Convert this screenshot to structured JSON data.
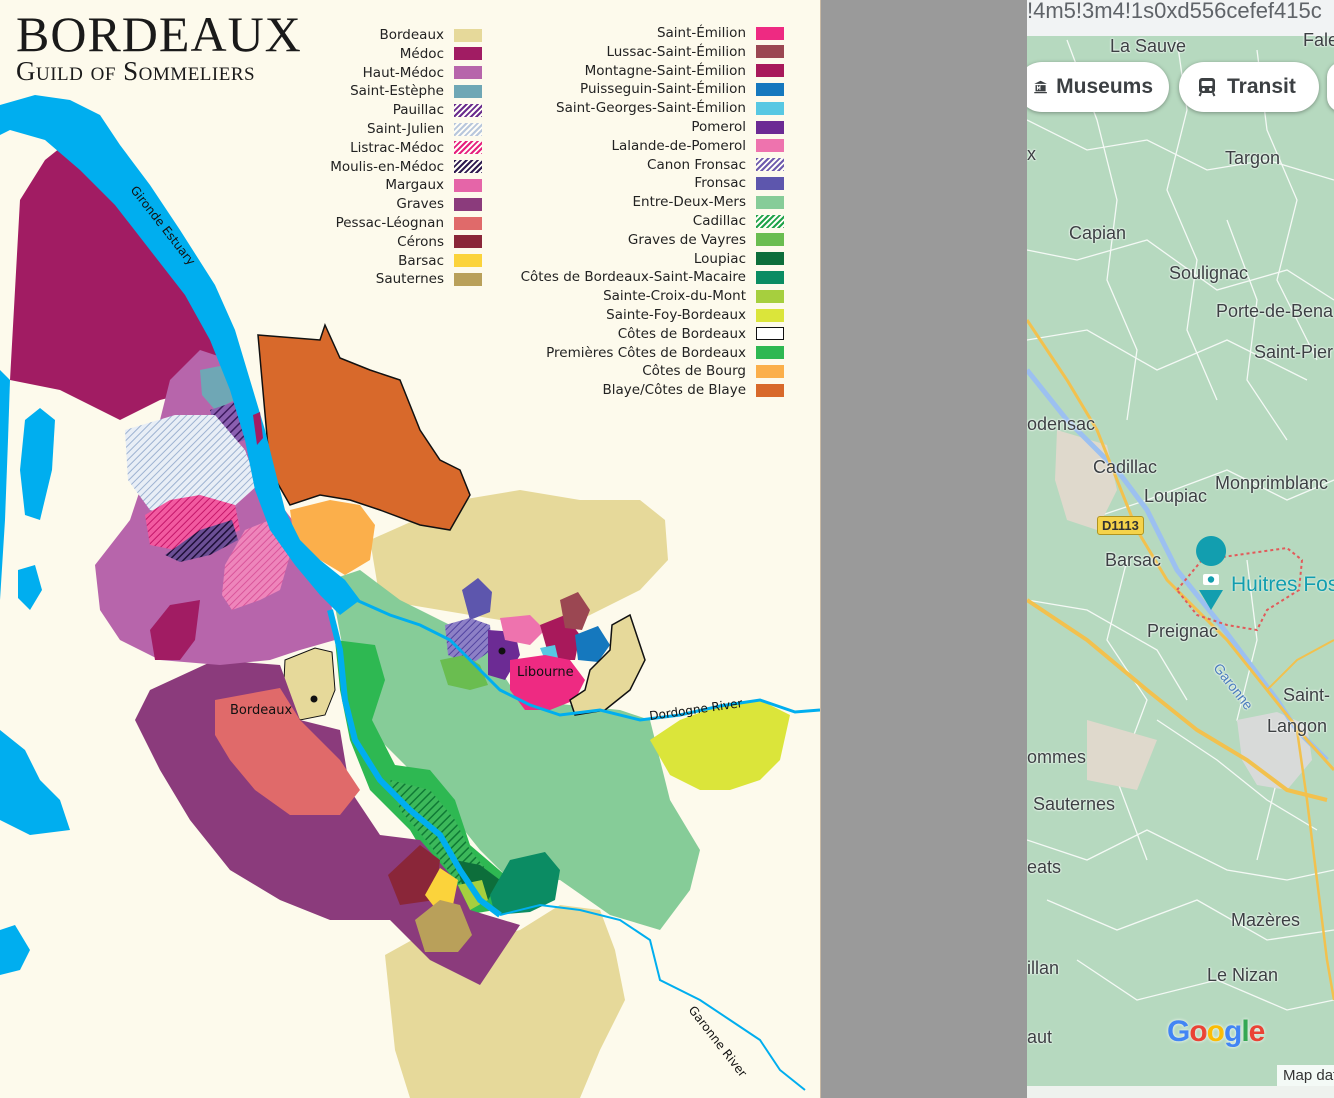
{
  "wine_map": {
    "title": "BORDEAUX",
    "subtitle": "Guild of Sommeliers",
    "legend_left": [
      {
        "label": "Bordeaux",
        "color": "#e6d99a"
      },
      {
        "label": "Médoc",
        "color": "#a11c63"
      },
      {
        "label": "Haut-Médoc",
        "color": "#b765ab"
      },
      {
        "label": "Saint-Estèphe",
        "color": "#6fa7b5"
      },
      {
        "label": "Pauillac",
        "color": "#6a2c8d",
        "hatched": true
      },
      {
        "label": "Saint-Julien",
        "color": "#b8c7dc",
        "hatched": true
      },
      {
        "label": "Listrac-Médoc",
        "color": "#e6207e",
        "hatched": true
      },
      {
        "label": "Moulis-en-Médoc",
        "color": "#2e1a4f",
        "hatched": true
      },
      {
        "label": "Margaux",
        "color": "#e565a8"
      },
      {
        "label": "Graves",
        "color": "#8b3b7c"
      },
      {
        "label": "Pessac-Léognan",
        "color": "#e06a6a"
      },
      {
        "label": "Cérons",
        "color": "#8a2639"
      },
      {
        "label": "Barsac",
        "color": "#fbd33b"
      },
      {
        "label": "Sauternes",
        "color": "#b9a05a"
      }
    ],
    "legend_right": [
      {
        "label": "Saint-Émilion",
        "color": "#ee2a82"
      },
      {
        "label": "Lussac-Saint-Émilion",
        "color": "#9b4752"
      },
      {
        "label": "Montagne-Saint-Émilion",
        "color": "#a8195b"
      },
      {
        "label": "Puisseguin-Saint-Émilion",
        "color": "#1578be"
      },
      {
        "label": "Saint-Georges-Saint-Émilion",
        "color": "#57c8e3"
      },
      {
        "label": "Pomerol",
        "color": "#6c2b94"
      },
      {
        "label": "Lalande-de-Pomerol",
        "color": "#ee73ae"
      },
      {
        "label": "Canon Fronsac",
        "color": "#6e5aad",
        "hatched": true
      },
      {
        "label": "Fronsac",
        "color": "#5d56ad"
      },
      {
        "label": "Entre-Deux-Mers",
        "color": "#86cc98"
      },
      {
        "label": "Cadillac",
        "color": "#1fa34a",
        "hatched": true
      },
      {
        "label": "Graves de Vayres",
        "color": "#6abd50"
      },
      {
        "label": "Loupiac",
        "color": "#0d6e3b"
      },
      {
        "label": "Côtes de Bordeaux-Saint-Macaire",
        "color": "#0b8c63"
      },
      {
        "label": "Sainte-Croix-du-Mont",
        "color": "#a6cf3e"
      },
      {
        "label": "Sainte-Foy-Bordeaux",
        "color": "#dbe53a"
      },
      {
        "label": "Côtes de Bordeaux",
        "color": "#ffffff",
        "outline": true
      },
      {
        "label": "Premières Côtes de Bordeaux",
        "color": "#2eb852"
      },
      {
        "label": "Côtes de Bourg",
        "color": "#fbaf4b"
      },
      {
        "label": "Blaye/Côtes de Blaye",
        "color": "#d8692b"
      }
    ],
    "labels": {
      "estuary": "Gironde Estuary",
      "dordogne": "Dordogne River",
      "garonne": "Garonne River",
      "libourne": "Libourne",
      "bordeaux_city": "Bordeaux"
    },
    "colors": {
      "water": "#00aeef",
      "background": "#fdfaec"
    }
  },
  "google_map": {
    "url_fragment": "!4m5!3m4!1s0xd556cefef415c",
    "chips": [
      {
        "label": "Museums",
        "icon": "museum-icon"
      },
      {
        "label": "Transit",
        "icon": "transit-icon"
      }
    ],
    "places": {
      "la_sauve": "La Sauve",
      "fale": "Fale",
      "saint_partial": "Saint-",
      "targon": "Targon",
      "capian": "Capian",
      "soulignac": "Soulignac",
      "porte_de_bena": "Porte-de-Bena",
      "saint_pier": "Saint-Pier",
      "podensac": "odensac",
      "cadillac": "Cadillac",
      "loupiac": "Loupiac",
      "monprimblanc": "Monprimblanc",
      "barsac": "Barsac",
      "preignac": "Preignac",
      "garonne": "Garonne",
      "saint_m": "Saint-",
      "langon": "Langon",
      "pommes": "ommes",
      "sauternes": "Sauternes",
      "eats": "eats",
      "mazeres": "Mazères",
      "illan": "illan",
      "le_nizan": "Le Nizan",
      "aut": "aut",
      "x_fragment": "x"
    },
    "road_badge": "D1113",
    "poi": "Huitres Fos",
    "logo": "Google",
    "map_data": "Map dat",
    "colors": {
      "land": "#b6d9bf",
      "road": "#f2c14e",
      "poi": "#129eaf"
    }
  }
}
